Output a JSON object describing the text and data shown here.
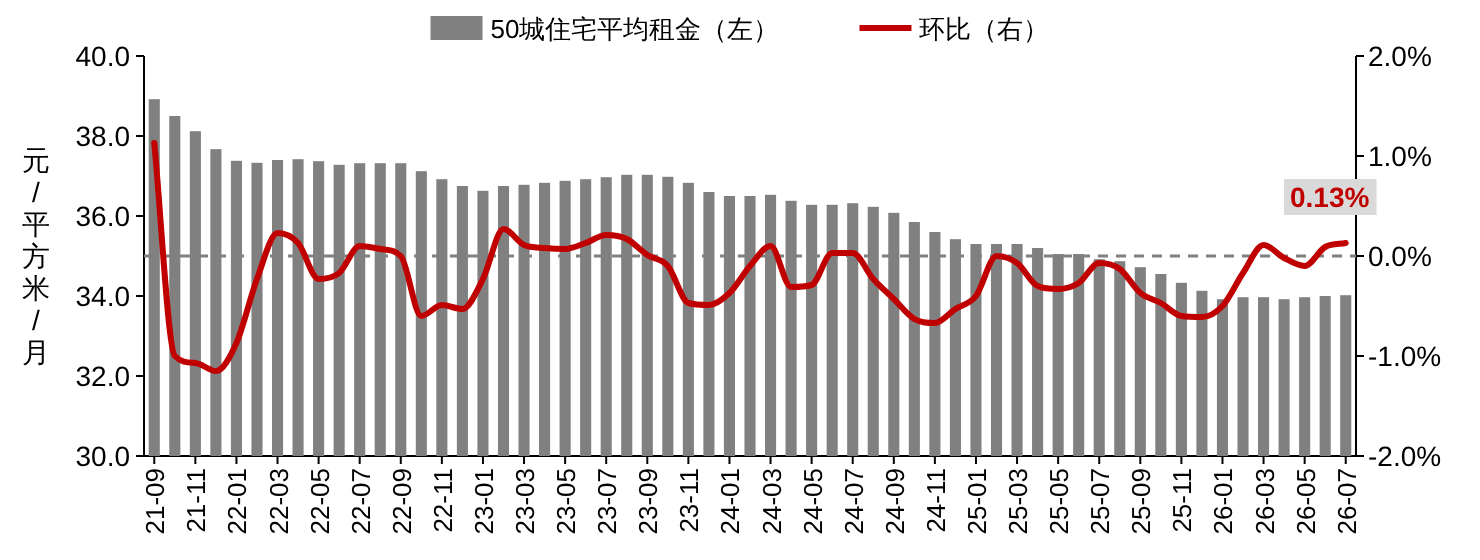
{
  "chart_data": {
    "type": "bar",
    "ylabel": "元/平方米/月",
    "categories": [
      "21-09",
      null,
      "21-11",
      null,
      "22-01",
      null,
      "22-03",
      null,
      "22-05",
      null,
      "22-07",
      null,
      "22-09",
      null,
      "22-11",
      null,
      "23-01",
      null,
      "23-03",
      null,
      "23-05",
      null,
      "23-07",
      null,
      "23-09",
      null,
      "23-11",
      null,
      "24-01",
      null,
      "24-03",
      null,
      "24-05",
      null,
      "24-07",
      null,
      "24-09",
      null,
      "24-11",
      null,
      "25-01",
      null,
      "25-03",
      null,
      "25-05",
      null,
      "25-07",
      null,
      "25-09",
      null,
      "25-11",
      null,
      "26-01",
      null,
      "26-03",
      null,
      "26-05",
      null,
      "26-07"
    ],
    "ylim": [
      30,
      40
    ],
    "yticks": [
      {
        "value": 30,
        "label": "30.0"
      },
      {
        "value": 32,
        "label": "32.0"
      },
      {
        "value": 34,
        "label": "34.0"
      },
      {
        "value": 36,
        "label": "36.0"
      },
      {
        "value": 38,
        "label": "38.0"
      },
      {
        "value": 40,
        "label": "40.0"
      }
    ],
    "y2lim": [
      -2,
      2
    ],
    "y2ticks": [
      {
        "value": -2,
        "label": "-2.0%"
      },
      {
        "value": -1,
        "label": "-1.0%"
      },
      {
        "value": 0,
        "label": "0.0%"
      },
      {
        "value": 1,
        "label": "1.0%"
      },
      {
        "value": 2,
        "label": "2.0%"
      }
    ],
    "legend": "top",
    "series": [
      {
        "name": "50城住宅平均租金（左）",
        "color": "#808080",
        "values": [
          38.92,
          38.5,
          38.12,
          37.67,
          37.38,
          37.33,
          37.4,
          37.42,
          37.37,
          37.28,
          37.32,
          37.32,
          37.32,
          37.12,
          36.92,
          36.75,
          36.63,
          36.75,
          36.78,
          36.83,
          36.88,
          36.92,
          36.97,
          37.03,
          37.03,
          36.98,
          36.83,
          36.6,
          36.5,
          36.5,
          36.53,
          36.38,
          36.28,
          36.28,
          36.32,
          36.23,
          36.08,
          35.85,
          35.6,
          35.42,
          35.3,
          35.3,
          35.3,
          35.2,
          35.05,
          35.05,
          34.92,
          34.87,
          34.72,
          34.55,
          34.33,
          34.13,
          33.92,
          33.97,
          33.97,
          33.92,
          33.97,
          34.0,
          34.02
        ]
      },
      {
        "name": "环比（右）",
        "type": "line",
        "axis": "y2",
        "color": "#c00000",
        "values": [
          1.13,
          -1.0,
          -1.07,
          -1.15,
          -0.87,
          -0.23,
          0.23,
          0.13,
          -0.23,
          -0.17,
          0.1,
          0.07,
          0.0,
          -0.6,
          -0.49,
          -0.53,
          -0.23,
          0.27,
          0.11,
          0.08,
          0.07,
          0.13,
          0.21,
          0.17,
          0.01,
          -0.1,
          -0.47,
          -0.49,
          -0.37,
          -0.1,
          0.1,
          -0.31,
          -0.29,
          0.03,
          0.03,
          -0.23,
          -0.43,
          -0.63,
          -0.67,
          -0.53,
          -0.4,
          0.0,
          -0.07,
          -0.3,
          -0.33,
          -0.27,
          -0.07,
          -0.13,
          -0.37,
          -0.47,
          -0.6,
          -0.61,
          -0.5,
          -0.17,
          0.11,
          -0.02,
          -0.1,
          0.09,
          0.13
        ],
        "value_labels": [
          null,
          null,
          null,
          null,
          null,
          null,
          null,
          null,
          null,
          null,
          null,
          null,
          null,
          null,
          null,
          null,
          null,
          null,
          null,
          null,
          null,
          null,
          null,
          null,
          null,
          null,
          null,
          null,
          null,
          null,
          null,
          null,
          null,
          null,
          null,
          null,
          null,
          null,
          null,
          null,
          null,
          null,
          null,
          null,
          null,
          null,
          null,
          null,
          null,
          null,
          null,
          null,
          null,
          null,
          null,
          null,
          null,
          null,
          "0.13%"
        ]
      }
    ],
    "ref_lines": [
      {
        "axis": "y2",
        "value": 0,
        "color": "#808080",
        "line_style": "dashed"
      }
    ]
  }
}
